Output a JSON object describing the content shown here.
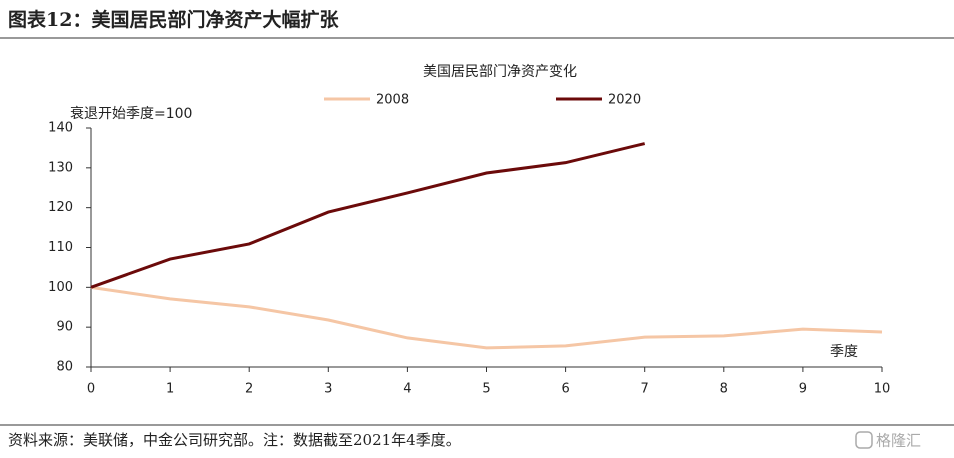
{
  "header": {
    "title": "图表12：美国居民部门净资产大幅扩张"
  },
  "chart_data": {
    "type": "line",
    "title": "美国居民部门净资产变化",
    "y_label": "衰退开始季度=100",
    "x_label": "季度",
    "x": [
      0,
      1,
      2,
      3,
      4,
      5,
      6,
      7,
      8,
      9,
      10
    ],
    "series": [
      {
        "name": "2008",
        "color": "#f5c6a5",
        "values": [
          100,
          97.1,
          95.1,
          91.8,
          87.3,
          84.8,
          85.3,
          87.5,
          87.8,
          89.5,
          88.8
        ]
      },
      {
        "name": "2020",
        "color": "#6b0a0a",
        "values": [
          100,
          107.1,
          110.9,
          118.9,
          123.7,
          128.7,
          131.3,
          136.1,
          null,
          null,
          null
        ]
      }
    ],
    "xlim": [
      0,
      10
    ],
    "xticks": [
      0,
      1,
      2,
      3,
      4,
      5,
      6,
      7,
      8,
      9,
      10
    ],
    "ylim": [
      80,
      140
    ],
    "yticks": [
      80,
      90,
      100,
      110,
      120,
      130,
      140
    ],
    "grid": false
  },
  "footer": {
    "source": "资料来源：美联储，中金公司研究部。注：数据截至2021年4季度。",
    "watermark": "格隆汇"
  }
}
